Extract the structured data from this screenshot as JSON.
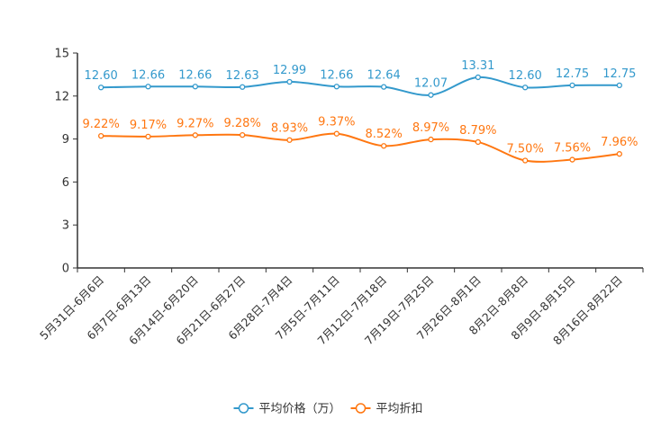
{
  "chart_data": {
    "type": "line",
    "categories": [
      "5月31日-6月6日",
      "6月7日-6月13日",
      "6月14日-6月20日",
      "6月21日-6月27日",
      "6月28日-7月4日",
      "7月5日-7月11日",
      "7月12日-7月18日",
      "7月19日-7月25日",
      "7月26日-8月1日",
      "8月2日-8月8日",
      "8月9日-8月15日",
      "8月16日-8月22日"
    ],
    "ylim": [
      0,
      15
    ],
    "yticks": [
      0,
      3,
      6,
      9,
      12,
      15
    ],
    "series": [
      {
        "name": "平均价格（万）",
        "color": "#3399cc",
        "values": [
          12.6,
          12.66,
          12.66,
          12.63,
          12.99,
          12.66,
          12.64,
          12.07,
          13.31,
          12.6,
          12.75,
          12.75
        ],
        "labels": [
          "12.60",
          "12.66",
          "12.66",
          "12.63",
          "12.99",
          "12.66",
          "12.64",
          "12.07",
          "13.31",
          "12.60",
          "12.75",
          "12.75"
        ]
      },
      {
        "name": "平均折扣",
        "color": "#ff7711",
        "values": [
          9.22,
          9.17,
          9.27,
          9.28,
          8.93,
          9.37,
          8.52,
          8.97,
          8.79,
          7.5,
          7.56,
          7.96
        ],
        "labels": [
          "9.22%",
          "9.17%",
          "9.27%",
          "9.28%",
          "8.93%",
          "9.37%",
          "8.52%",
          "8.97%",
          "8.79%",
          "7.50%",
          "7.56%",
          "7.96%"
        ]
      }
    ],
    "legend": {
      "position": "bottom"
    }
  }
}
